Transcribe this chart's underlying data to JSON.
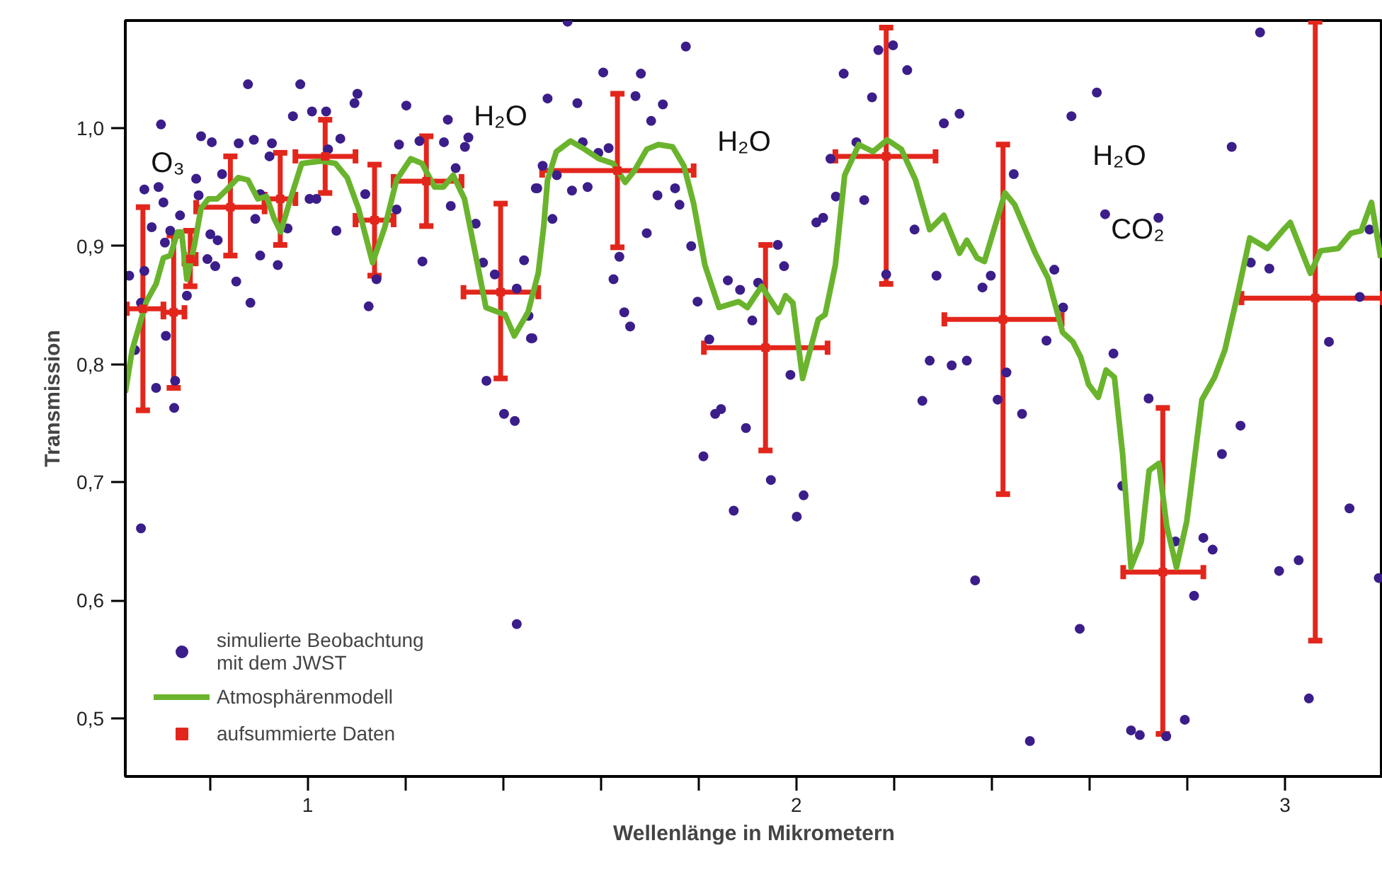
{
  "chart_data": {
    "type": "scatter",
    "xlabel": "Wellenlänge in Mikrometern",
    "ylabel": "Transmission",
    "xlim": [
      0.627,
      3.2
    ],
    "ylim": [
      0.451,
      1.091
    ],
    "xticks": [
      {
        "value": 0.8,
        "label": null
      },
      1,
      {
        "value": 1.2,
        "label": null
      },
      {
        "value": 1.4,
        "label": null
      },
      {
        "value": 1.6,
        "label": null
      },
      {
        "value": 1.8,
        "label": null
      },
      2,
      {
        "value": 2.2,
        "label": null
      },
      {
        "value": 2.4,
        "label": null
      },
      {
        "value": 2.6,
        "label": null
      },
      {
        "value": 2.8,
        "label": null
      },
      3
    ],
    "yticks": [
      {
        "value": 0.5,
        "label": "0,5"
      },
      {
        "value": 0.6,
        "label": "0,6"
      },
      {
        "value": 0.7,
        "label": "0,7"
      },
      {
        "value": 0.8,
        "label": "0,8"
      },
      {
        "value": 0.9,
        "label": "0,9"
      },
      {
        "value": 1.0,
        "label": "1,0"
      }
    ],
    "grid": false,
    "legend": "bottom left",
    "annotations": [
      "O₃",
      "H₂O",
      "H₂O",
      "H₂O",
      "CO₂"
    ],
    "series": [
      {
        "name": "simulierte Beobachtung\nmit dem JWST",
        "marker": "circle",
        "color": "#3b1e8a",
        "x": [
          0.635,
          0.647,
          0.7,
          0.666,
          0.695,
          0.705,
          0.681,
          0.719,
          0.708,
          0.666,
          0.659,
          0.71,
          0.69,
          0.727,
          0.782,
          0.804,
          0.772,
          0.777,
          0.739,
          0.753,
          0.729,
          0.859,
          0.89,
          0.878,
          0.854,
          0.883,
          0.903,
          0.811,
          0.795,
          0.816,
          0.801,
          0.825,
          0.927,
          0.922,
          0.903,
          0.893,
          0.939,
          0.959,
          0.97,
          0.985,
          1.009,
          1.038,
          1.004,
          1.018,
          1.059,
          1.067,
          1.042,
          1.096,
          1.102,
          1.118,
          1.125,
          1.141,
          1.187,
          1.202,
          1.229,
          1.279,
          1.287,
          1.322,
          1.329,
          1.303,
          1.293,
          1.182,
          1.235,
          1.344,
          1.359,
          1.366,
          1.402,
          1.424,
          1.383,
          1.428,
          1.457,
          1.467,
          1.443,
          0.659,
          1.428,
          1.532,
          1.774,
          1.605,
          1.682,
          1.491,
          1.552,
          1.671,
          1.727,
          1.703,
          1.563,
          1.595,
          1.616,
          1.481,
          1.51,
          1.47,
          1.541,
          1.573,
          1.501,
          1.716,
          1.752,
          1.761,
          1.694,
          1.638,
          1.626,
          1.648,
          1.66,
          1.452,
          1.46,
          1.785,
          1.798,
          1.822,
          1.86,
          1.885,
          1.922,
          1.91,
          1.962,
          1.975,
          1.988,
          1.834,
          1.846,
          1.897,
          1.81,
          1.948,
          1.872,
          2.015,
          2.001,
          2.041,
          2.055,
          2.081,
          2.139,
          2.07,
          2.123,
          2.097,
          2.155,
          2.168,
          2.198,
          2.227,
          2.184,
          2.242,
          2.287,
          2.302,
          2.273,
          2.258,
          2.334,
          2.563,
          2.615,
          2.445,
          2.632,
          2.741,
          2.891,
          2.949,
          2.398,
          2.381,
          2.528,
          2.546,
          2.512,
          2.649,
          2.318,
          2.349,
          2.43,
          2.412,
          2.462,
          2.721,
          2.909,
          2.871,
          2.93,
          2.968,
          3.09,
          3.153,
          3.173,
          3.132,
          2.988,
          3.028,
          3.192,
          2.833,
          2.852,
          2.776,
          2.814,
          2.667,
          2.58,
          2.366,
          2.478,
          2.685,
          2.703,
          2.757,
          2.795,
          3.049
        ],
        "values": [
          0.875,
          0.812,
          1.003,
          0.948,
          0.95,
          0.937,
          0.916,
          0.913,
          0.903,
          0.879,
          0.852,
          0.824,
          0.78,
          0.763,
          0.993,
          0.988,
          0.957,
          0.943,
          0.926,
          0.858,
          0.786,
          0.987,
          0.99,
          1.037,
          0.87,
          0.852,
          0.892,
          0.883,
          0.889,
          0.905,
          0.91,
          0.961,
          0.987,
          0.976,
          0.944,
          0.923,
          0.884,
          0.915,
          1.01,
          1.037,
          1.014,
          1.014,
          0.94,
          0.94,
          0.913,
          0.991,
          0.982,
          1.021,
          1.029,
          0.944,
          0.849,
          0.872,
          0.986,
          1.019,
          0.989,
          0.988,
          1.007,
          0.984,
          0.992,
          0.966,
          0.934,
          0.931,
          0.887,
          0.919,
          0.886,
          0.786,
          0.758,
          0.752,
          0.876,
          0.864,
          0.822,
          0.949,
          0.888,
          0.661,
          0.58,
          1.09,
          1.069,
          1.047,
          1.046,
          1.025,
          1.021,
          1.027,
          1.02,
          1.006,
          0.988,
          0.979,
          0.983,
          0.968,
          0.96,
          0.949,
          0.947,
          0.95,
          0.923,
          0.943,
          0.949,
          0.935,
          0.911,
          0.891,
          0.872,
          0.844,
          0.832,
          0.841,
          0.822,
          0.9,
          0.853,
          0.821,
          0.871,
          0.863,
          0.869,
          0.837,
          0.901,
          0.883,
          0.791,
          0.758,
          0.762,
          0.746,
          0.722,
          0.702,
          0.676,
          0.689,
          0.671,
          0.92,
          0.924,
          0.942,
          0.939,
          0.974,
          0.988,
          1.046,
          1.026,
          1.066,
          1.07,
          1.049,
          0.876,
          0.914,
          0.875,
          1.004,
          0.803,
          0.769,
          1.012,
          1.01,
          1.03,
          0.961,
          0.927,
          0.924,
          0.984,
          1.081,
          0.875,
          0.865,
          0.88,
          0.848,
          0.82,
          0.809,
          0.799,
          0.803,
          0.793,
          0.77,
          0.758,
          0.771,
          0.748,
          0.724,
          0.886,
          0.881,
          0.819,
          0.857,
          0.914,
          0.678,
          0.625,
          0.634,
          0.619,
          0.653,
          0.643,
          0.65,
          0.604,
          0.697,
          0.576,
          0.617,
          0.481,
          0.49,
          0.486,
          0.485,
          0.499,
          0.517
        ]
      },
      {
        "name": "Atmosphärenmodell",
        "type": "line",
        "color": "#6ab42d",
        "x": [
          0.627,
          0.641,
          0.67,
          0.69,
          0.705,
          0.719,
          0.734,
          0.742,
          0.753,
          0.768,
          0.782,
          0.797,
          0.815,
          0.835,
          0.858,
          0.878,
          0.898,
          0.916,
          0.931,
          0.945,
          0.965,
          0.988,
          1.028,
          1.057,
          1.081,
          1.104,
          1.133,
          1.158,
          1.182,
          1.211,
          1.234,
          1.26,
          1.278,
          1.298,
          1.321,
          1.346,
          1.365,
          1.404,
          1.423,
          1.451,
          1.472,
          1.483,
          1.491,
          1.509,
          1.538,
          1.567,
          1.596,
          1.625,
          1.65,
          1.669,
          1.694,
          1.718,
          1.747,
          1.77,
          1.79,
          1.813,
          1.842,
          1.882,
          1.9,
          1.929,
          1.964,
          1.978,
          1.993,
          2.013,
          2.045,
          2.059,
          2.08,
          2.099,
          2.128,
          2.157,
          2.186,
          2.215,
          2.244,
          2.273,
          2.302,
          2.334,
          2.349,
          2.37,
          2.385,
          2.427,
          2.447,
          2.489,
          2.515,
          2.545,
          2.566,
          2.582,
          2.598,
          2.618,
          2.634,
          2.651,
          2.668,
          2.685,
          2.706,
          2.722,
          2.742,
          2.758,
          2.778,
          2.799,
          2.83,
          2.856,
          2.877,
          2.902,
          2.928,
          2.964,
          2.995,
          3.011,
          3.052,
          3.073,
          3.109,
          3.135,
          3.156,
          3.177,
          3.196
        ],
        "values": [
          0.776,
          0.812,
          0.853,
          0.868,
          0.89,
          0.892,
          0.912,
          0.912,
          0.872,
          0.9,
          0.932,
          0.94,
          0.94,
          0.948,
          0.958,
          0.956,
          0.94,
          0.942,
          0.924,
          0.912,
          0.94,
          0.97,
          0.972,
          0.97,
          0.958,
          0.932,
          0.886,
          0.916,
          0.956,
          0.974,
          0.97,
          0.95,
          0.95,
          0.96,
          0.94,
          0.888,
          0.848,
          0.842,
          0.824,
          0.844,
          0.877,
          0.916,
          0.956,
          0.98,
          0.989,
          0.982,
          0.974,
          0.97,
          0.954,
          0.964,
          0.982,
          0.986,
          0.984,
          0.968,
          0.936,
          0.884,
          0.848,
          0.853,
          0.848,
          0.866,
          0.844,
          0.858,
          0.852,
          0.788,
          0.838,
          0.842,
          0.884,
          0.96,
          0.986,
          0.98,
          0.99,
          0.982,
          0.956,
          0.914,
          0.926,
          0.894,
          0.905,
          0.89,
          0.887,
          0.945,
          0.935,
          0.894,
          0.873,
          0.827,
          0.819,
          0.806,
          0.783,
          0.772,
          0.795,
          0.789,
          0.723,
          0.628,
          0.65,
          0.71,
          0.716,
          0.663,
          0.628,
          0.667,
          0.77,
          0.789,
          0.812,
          0.857,
          0.907,
          0.898,
          0.913,
          0.92,
          0.877,
          0.896,
          0.898,
          0.911,
          0.913,
          0.937,
          0.89
        ]
      },
      {
        "name": "aufsummierte Daten",
        "marker": "square",
        "color": "#e3261c",
        "x": [
          0.663,
          0.726,
          0.76,
          0.842,
          0.944,
          1.036,
          1.137,
          1.243,
          1.395,
          1.634,
          1.937,
          2.184,
          2.423,
          2.75,
          3.062
        ],
        "values": [
          0.847,
          0.844,
          0.889,
          0.933,
          0.94,
          0.976,
          0.922,
          0.955,
          0.861,
          0.964,
          0.814,
          0.976,
          0.838,
          0.624,
          0.856
        ],
        "errors": [
          [
            0.761,
            0.933
          ],
          [
            0.78,
            0.909
          ],
          [
            0.866,
            0.913
          ],
          [
            0.892,
            0.976
          ],
          [
            0.901,
            0.979
          ],
          [
            0.945,
            1.007
          ],
          [
            0.875,
            0.969
          ],
          [
            0.917,
            0.993
          ],
          [
            0.788,
            0.936
          ],
          [
            0.899,
            1.029
          ],
          [
            0.727,
            0.901
          ],
          [
            0.868,
            1.085
          ],
          [
            0.69,
            0.986
          ],
          [
            0.487,
            0.763
          ],
          [
            0.566,
            1.09
          ]
        ],
        "xerrors": [
          [
            0.63,
            0.705
          ],
          [
            0.705,
            0.748
          ],
          [
            0.748,
            0.771
          ],
          [
            0.772,
            0.912
          ],
          [
            0.912,
            0.975
          ],
          [
            0.975,
            1.098
          ],
          [
            1.098,
            1.176
          ],
          [
            1.176,
            1.315
          ],
          [
            1.319,
            1.472
          ],
          [
            1.48,
            1.79
          ],
          [
            1.811,
            2.064
          ],
          [
            2.08,
            2.285
          ],
          [
            2.303,
            2.543
          ],
          [
            2.669,
            2.833
          ],
          [
            2.911,
            3.2
          ]
        ]
      }
    ]
  }
}
